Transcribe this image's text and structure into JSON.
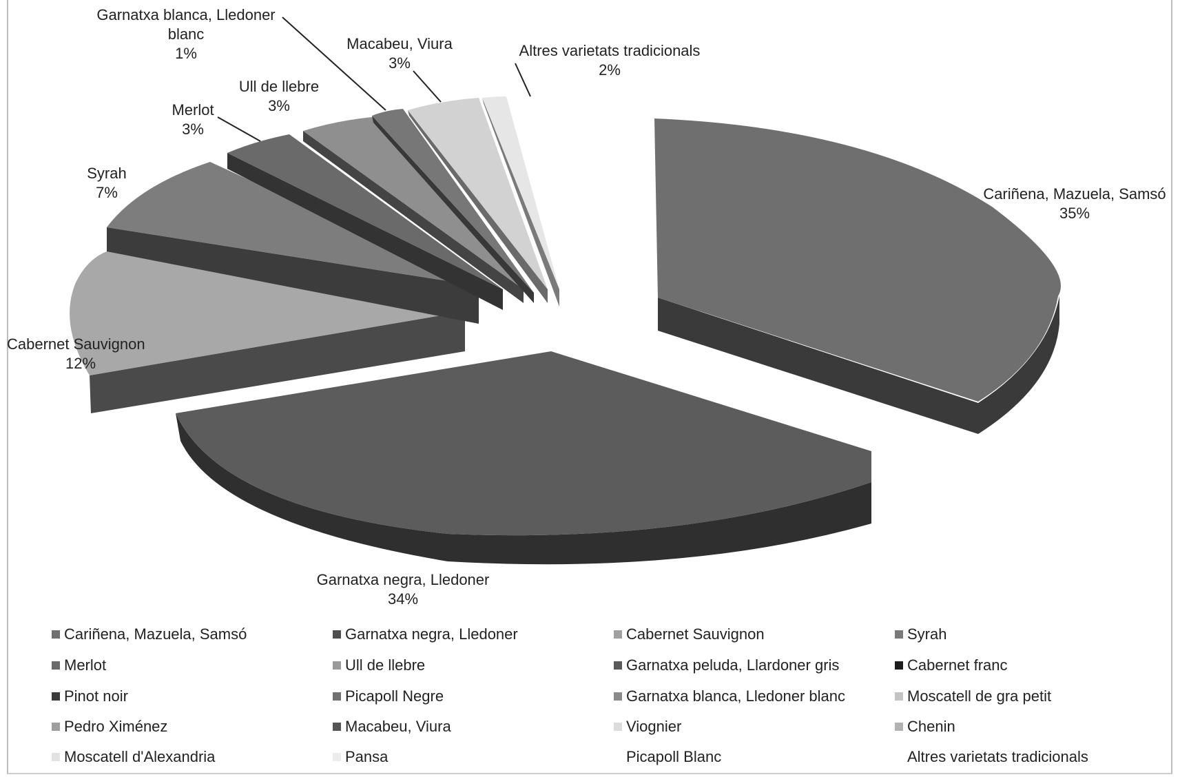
{
  "chart_data": {
    "type": "pie",
    "title": "",
    "slices": [
      {
        "label": "Cariñena, Mazuela, Samsó",
        "value": 35,
        "pct_text": "35%",
        "color": "#6f6f6f",
        "side": "#3a3a3a"
      },
      {
        "label": "Garnatxa negra, Lledoner",
        "value": 34,
        "pct_text": "34%",
        "color": "#5c5c5c",
        "side": "#2f2f2f"
      },
      {
        "label": "Cabernet Sauvignon",
        "value": 12,
        "pct_text": "12%",
        "color": "#a8a8a8",
        "side": "#5a5a5a"
      },
      {
        "label": "Syrah",
        "value": 7,
        "pct_text": "7%",
        "color": "#7d7d7d",
        "side": "#3c3c3c"
      },
      {
        "label": "Merlot",
        "value": 3,
        "pct_text": "3%",
        "color": "#6a6a6a",
        "side": "#333333"
      },
      {
        "label": "Ull de llebre",
        "value": 3,
        "pct_text": "3%",
        "color": "#8f8f8f",
        "side": "#444444"
      },
      {
        "label": "Garnatxa blanca, Lledoner blanc",
        "value": 1,
        "pct_text": "1%",
        "color": "#777777",
        "side": "#383838"
      },
      {
        "label": "Macabeu, Viura",
        "value": 3,
        "pct_text": "3%",
        "color": "#d2d2d2",
        "side": "#6a6a6a"
      },
      {
        "label": "Altres varietats tradicionals",
        "value": 2,
        "pct_text": "2%",
        "color": "#e6e6e6",
        "side": "#7a7a7a"
      }
    ],
    "legend": [
      {
        "label": "Cariñena, Mazuela, Samsó",
        "color": "#6f6f6f"
      },
      {
        "label": "Garnatxa negra, Lledoner",
        "color": "#4f4f4f"
      },
      {
        "label": "Cabernet Sauvignon",
        "color": "#a0a0a0"
      },
      {
        "label": "Syrah",
        "color": "#7a7a7a"
      },
      {
        "label": "Merlot",
        "color": "#6a6a6a"
      },
      {
        "label": "Ull de llebre",
        "color": "#9a9a9a"
      },
      {
        "label": "Garnatxa peluda, Llardoner gris",
        "color": "#5a5a5a"
      },
      {
        "label": "Cabernet franc",
        "color": "#1e1e1e"
      },
      {
        "label": "Pinot noir",
        "color": "#3a3a3a"
      },
      {
        "label": "Picapoll Negre",
        "color": "#707070"
      },
      {
        "label": "Garnatxa blanca, Lledoner blanc",
        "color": "#8a8a8a"
      },
      {
        "label": "Moscatell de gra petit",
        "color": "#c4c4c4"
      },
      {
        "label": "Pedro Ximénez",
        "color": "#9e9e9e"
      },
      {
        "label": "Macabeu, Viura",
        "color": "#555555"
      },
      {
        "label": "Viognier",
        "color": "#dcdcdc"
      },
      {
        "label": "Chenin",
        "color": "#b2b2b2"
      },
      {
        "label": "Moscatell d'Alexandria",
        "color": "#e2e2e2"
      },
      {
        "label": "Pansa",
        "color": "#ececec"
      },
      {
        "label": "Picapoll Blanc",
        "color": "#ffffff"
      },
      {
        "label": "Altres varietats tradicionals",
        "color": "#ffffff"
      }
    ],
    "label_lines": {
      "garnatxa_blanca": [
        "Garnatxa blanca, Lledoner",
        "blanc"
      ]
    }
  }
}
